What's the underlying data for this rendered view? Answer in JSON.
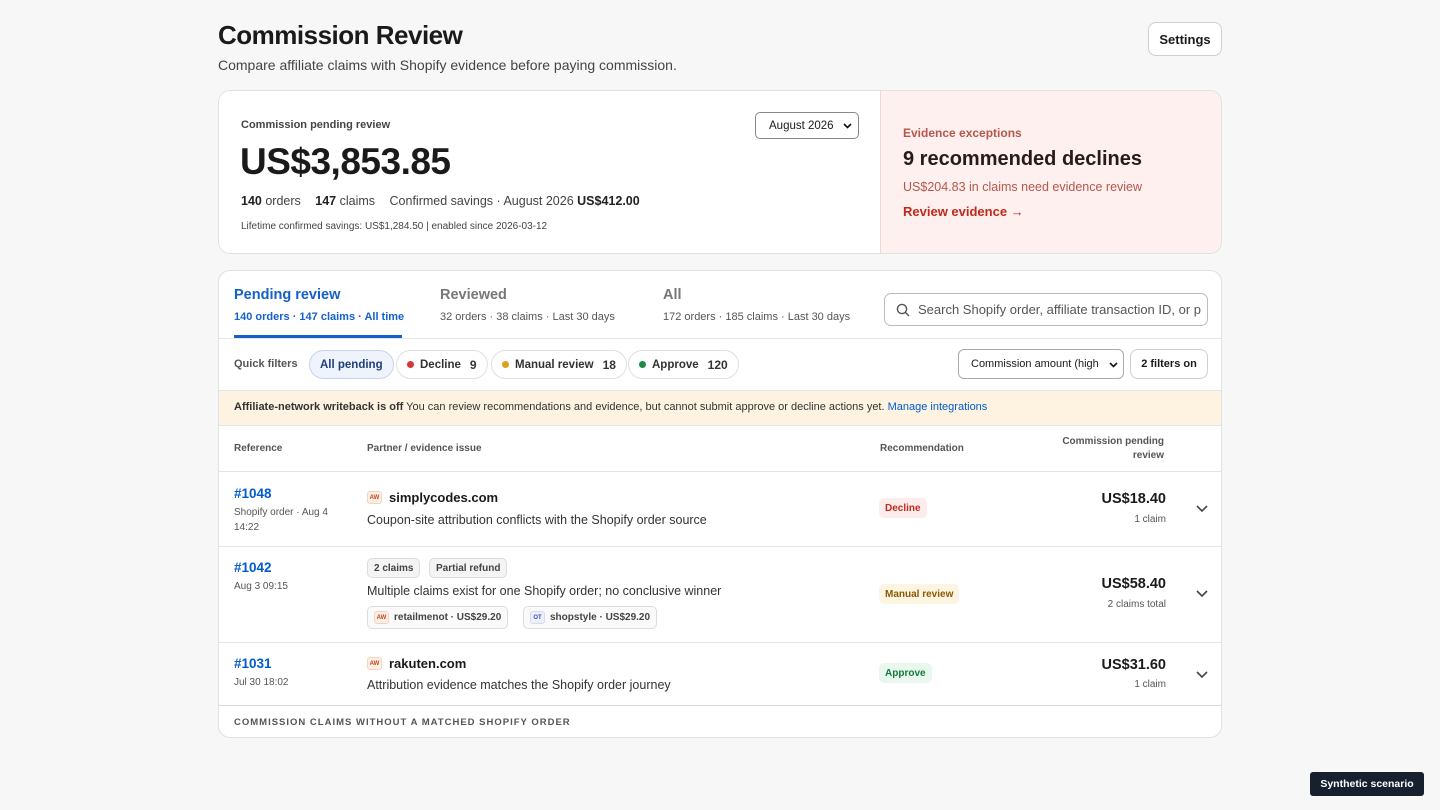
{
  "header": {
    "title": "Commission Review",
    "subtitle": "Compare affiliate claims with Shopify evidence before paying commission.",
    "settings": "Settings"
  },
  "summary": {
    "label": "Commission pending review",
    "period": "August 2026",
    "amount": "US$3,853.85",
    "orders_count": 140,
    "orders_label": "orders",
    "claims_count": 147,
    "claims_label": "claims",
    "savings_label": "Confirmed savings · August 2026",
    "savings_value": "US$412.00",
    "lifetime": "Lifetime confirmed savings: US$1,284.50 | enabled since 2026-03-12"
  },
  "exceptions": {
    "label": "Evidence exceptions",
    "headline": "9 recommended declines",
    "detail": "US$204.83 in claims need evidence review",
    "link": "Review evidence →"
  },
  "tabs": [
    {
      "title": "Pending review",
      "meta": "140 orders · 147 claims · All time"
    },
    {
      "title": "Reviewed",
      "meta": "32 orders · 38 claims · Last 30 days"
    },
    {
      "title": "All",
      "meta": "172 orders · 185 claims · Last 30 days"
    }
  ],
  "search": {
    "placeholder": "Search Shopify order, affiliate transaction ID, or p"
  },
  "quick_filters": {
    "label": "Quick filters",
    "all": "All pending",
    "chips": [
      {
        "label": "Decline",
        "count": 9
      },
      {
        "label": "Manual review",
        "count": 18
      },
      {
        "label": "Approve",
        "count": 120
      }
    ]
  },
  "sort": "Commission amount (high",
  "filters_button": "2 filters on",
  "banner": {
    "bold": "Affiliate-network writeback is off",
    "text": "You can review recommendations and evidence, but cannot submit approve or decline actions yet.",
    "link": "Manage integrations"
  },
  "table": {
    "headers": [
      "Reference",
      "Partner / evidence issue",
      "Recommendation",
      "Commission pending review"
    ],
    "rows": [
      {
        "ref": "#1048",
        "meta": "Shopify order · Aug 4 14:22",
        "badge": "AW",
        "partner": "simplycodes.com",
        "issue": "Coupon-site attribution conflicts with the Shopify order source",
        "recommendation": "Decline",
        "amount": "US$18.40",
        "note": "1 claim"
      },
      {
        "ref": "#1042",
        "meta": "Aug 3 09:15",
        "chips": [
          "2 claims",
          "Partial refund"
        ],
        "issue": "Multiple claims exist for one Shopify order; no conclusive winner",
        "claims": [
          {
            "badge": "AW",
            "text": "retailmenot · US$29.20"
          },
          {
            "badge": "OT",
            "text": "shopstyle · US$29.20"
          }
        ],
        "recommendation": "Manual review",
        "amount": "US$58.40",
        "note": "2 claims total"
      },
      {
        "ref": "#1031",
        "meta": "Jul 30 18:02",
        "badge": "AW",
        "partner": "rakuten.com",
        "issue": "Attribution evidence matches the Shopify order journey",
        "recommendation": "Approve",
        "amount": "US$31.60",
        "note": "1 claim"
      }
    ]
  },
  "footer_section": "COMMISSION CLAIMS WITHOUT A MATCHED SHOPIFY ORDER",
  "scenario_badge": "Synthetic scenario"
}
